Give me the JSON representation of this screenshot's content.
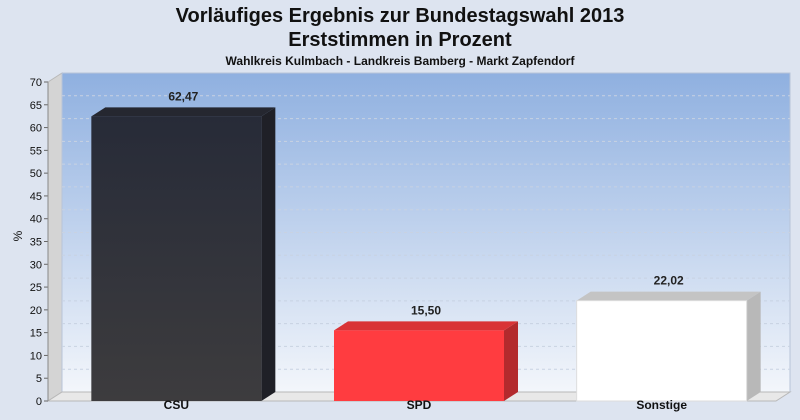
{
  "chart_data": {
    "type": "bar",
    "title": "Vorläufiges Ergebnis zur Bundestagswahl 2013",
    "title_line2": "Erststimmen in Prozent",
    "subtitle": "Wahlkreis Kulmbach - Landkreis Bamberg - Markt Zapfendorf",
    "ylabel": "%",
    "xlabel": "",
    "categories": [
      "CSU",
      "SPD",
      "Sonstige"
    ],
    "values": [
      62.47,
      15.5,
      22.02
    ],
    "value_labels": [
      "62,47",
      "15,50",
      "22,02"
    ],
    "colors": [
      "#2c2e38",
      "#ff3c40",
      "#ffffff"
    ],
    "ylim": [
      0,
      70
    ],
    "yticks": [
      0,
      5,
      10,
      15,
      20,
      25,
      30,
      35,
      40,
      45,
      50,
      55,
      60,
      65,
      70
    ],
    "grid": true,
    "style": "3d"
  }
}
